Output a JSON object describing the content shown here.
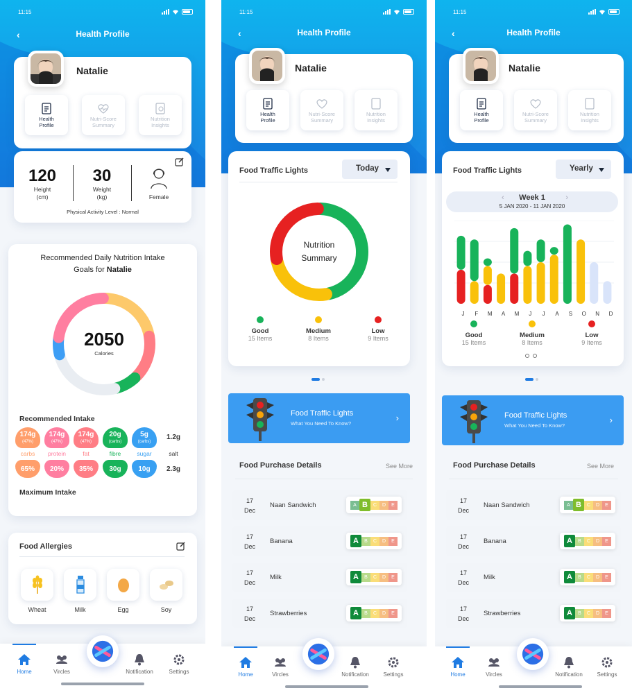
{
  "status": {
    "time": "11:15"
  },
  "common": {
    "title": "Health Profile",
    "user_name": "Natalie",
    "tabs": [
      {
        "label": "Health\nProfile"
      },
      {
        "label": "Nutri-Score\nSummary"
      },
      {
        "label": "Nutrition\nInsights"
      }
    ],
    "nav": {
      "home": "Home",
      "vircles": "Vircles",
      "notification": "Notification",
      "settings": "Settings"
    }
  },
  "screen1": {
    "height": {
      "value": "120",
      "label": "Height\n(cm)"
    },
    "weight": {
      "value": "30",
      "label": "Weight\n(kg)"
    },
    "gender": "Female",
    "activity": "Physical Activity Level : Normal",
    "rec_title_1": "Recommended Daily Nutrition Intake",
    "rec_title_2": "Goals for ",
    "rec_title_name": "Natalie",
    "calories_value": "2050",
    "calories_label": "Calories",
    "recommended_label": "Recommended Intake",
    "maximum_label": "Maximum Intake",
    "nutrients": [
      {
        "rec": "174g",
        "pct": "(47%)",
        "name": "carbs",
        "max": "65%",
        "color": "#ff9e6b"
      },
      {
        "rec": "174g",
        "pct": "(47%)",
        "name": "protein",
        "max": "20%",
        "color": "#ff7ea0"
      },
      {
        "rec": "174g",
        "pct": "(47%)",
        "name": "fat",
        "max": "35%",
        "color": "#ff7d85"
      },
      {
        "rec": "20g",
        "pct": "(carbs)",
        "name": "fibre",
        "max": "30g",
        "color": "#18b35a"
      },
      {
        "rec": "5g",
        "pct": "(carbs)",
        "name": "sugar",
        "max": "10g",
        "color": "#38a0f2"
      },
      {
        "rec": "1.2g",
        "pct": "",
        "name": "salt",
        "max": "2.3g",
        "color": "#ffffff"
      }
    ],
    "allergies_title": "Food Allergies",
    "allergies": [
      {
        "name": "Wheat",
        "icon": "wheat-icon"
      },
      {
        "name": "Milk",
        "icon": "milk-icon"
      },
      {
        "name": "Egg",
        "icon": "egg-icon"
      },
      {
        "name": "Soy",
        "icon": "soy-icon"
      }
    ]
  },
  "screen2": {
    "ftl_title": "Food Traffic Lights",
    "period": "Today",
    "center_1": "Nutrition",
    "center_2": "Summary"
  },
  "screen3": {
    "ftl_title": "Food Traffic Lights",
    "period": "Yearly",
    "week": "Week 1",
    "range": "5 JAN 2020 - 11 JAN 2020",
    "months": [
      "J",
      "F",
      "M",
      "A",
      "M",
      "J",
      "J",
      "A",
      "S",
      "O",
      "N",
      "D"
    ]
  },
  "legend": [
    {
      "label": "Good",
      "count": "15 Items",
      "color": "#18b35a"
    },
    {
      "label": "Medium",
      "count": "8 Items",
      "color": "#f9c10a"
    },
    {
      "label": "Low",
      "count": "9 Items",
      "color": "#e62121"
    }
  ],
  "banner": {
    "title": "Food Traffic Lights",
    "subtitle": "What You Need To Know?"
  },
  "purchase": {
    "title": "Food Purchase Details",
    "see_more": "See More",
    "rows": [
      {
        "day": "17",
        "month": "Dec",
        "name": "Naan Sandwich",
        "grade": "B"
      },
      {
        "day": "17",
        "month": "Dec",
        "name": "Banana",
        "grade": "A"
      },
      {
        "day": "17",
        "month": "Dec",
        "name": "Milk",
        "grade": "A"
      },
      {
        "day": "17",
        "month": "Dec",
        "name": "Strawberries",
        "grade": "A"
      }
    ]
  },
  "chart_data": [
    {
      "type": "pie",
      "title": "2050",
      "categories": [
        "segment-1",
        "segment-2",
        "segment-3",
        "segment-4",
        "segment-5",
        "segment-6"
      ],
      "values": [
        22,
        16,
        8,
        25,
        6,
        23
      ],
      "colors": [
        "#fdc96b",
        "#ff7d85",
        "#18b35a",
        "#e9edf2",
        "#3e9ef5",
        "#ff7ea0"
      ]
    },
    {
      "type": "pie",
      "categories": [
        "Good",
        "Medium",
        "Low"
      ],
      "values": [
        15,
        8,
        9
      ],
      "colors": [
        "#18b35a",
        "#f9c10a",
        "#e62121"
      ]
    },
    {
      "type": "bar",
      "categories": [
        "J",
        "F",
        "M",
        "A",
        "M",
        "J",
        "J",
        "A",
        "S",
        "O",
        "N",
        "D"
      ],
      "series": [
        {
          "name": "Low",
          "values": [
            45,
            0,
            25,
            0,
            40,
            0,
            0,
            0,
            0,
            0,
            0,
            0
          ]
        },
        {
          "name": "Medium",
          "values": [
            0,
            30,
            25,
            40,
            0,
            50,
            55,
            65,
            0,
            85,
            0,
            0
          ]
        },
        {
          "name": "Good",
          "values": [
            45,
            55,
            10,
            0,
            60,
            20,
            30,
            10,
            105,
            0,
            0,
            0
          ]
        },
        {
          "name": "Faded",
          "values": [
            0,
            0,
            0,
            0,
            0,
            0,
            0,
            0,
            0,
            0,
            55,
            30
          ]
        }
      ],
      "ylim": [
        0,
        110
      ]
    }
  ]
}
